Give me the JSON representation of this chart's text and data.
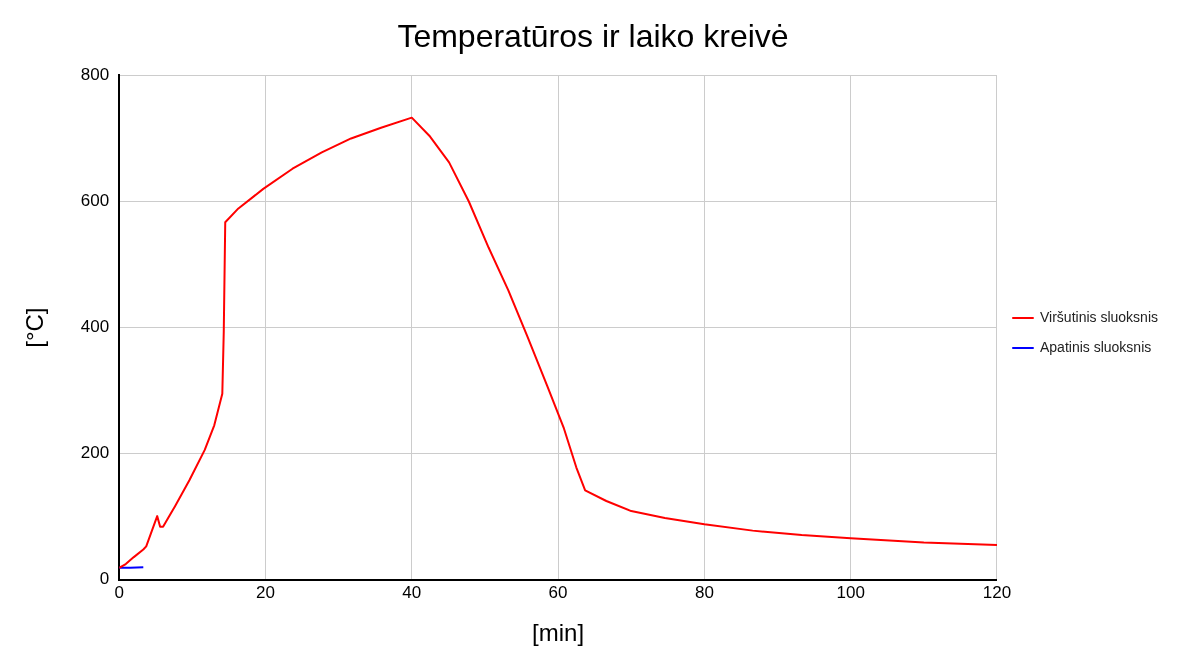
{
  "chart_data": {
    "type": "line",
    "title": "Temperatūros ir laiko kreivė",
    "xlabel": "[min]",
    "ylabel": "[°C]",
    "xlim": [
      0,
      120
    ],
    "xticks": [
      0,
      20,
      40,
      60,
      80,
      100,
      120
    ],
    "ylim": [
      0,
      800
    ],
    "yticks": [
      0,
      200,
      400,
      600,
      800
    ],
    "grid": true,
    "legend": "right",
    "marker": "none",
    "line_style": "solid",
    "series": [
      {
        "name": "Viršutinis sluoksnis",
        "color": "#ff0000",
        "x": [
          0,
          0.9,
          2,
          3.3,
          3.7,
          5.2,
          5.6,
          6,
          7.6,
          9.6,
          11.7,
          13,
          14.1,
          14.3,
          14.5,
          16.3,
          19.7,
          23.7,
          27.7,
          31.7,
          35.8,
          40,
          42.5,
          45.1,
          47.8,
          50.5,
          53.2,
          55.8,
          58.5,
          60.8,
          62.5,
          63.7,
          66.6,
          70,
          74.6,
          80,
          86.6,
          93.3,
          100,
          110,
          120
        ],
        "values": [
          19,
          25,
          36,
          48,
          53,
          101,
          84,
          84,
          116,
          158,
          206,
          245,
          295,
          394,
          567,
          589,
          620,
          652,
          678,
          700,
          717,
          733,
          703,
          662,
          600,
          527,
          459,
          386,
          308,
          240,
          178,
          142,
          125,
          109,
          98,
          88,
          78,
          71,
          66,
          59,
          55
        ]
      },
      {
        "name": "Apatinis sluoksnis",
        "color": "#0000ff",
        "x": [
          0,
          1.5,
          3.3
        ],
        "values": [
          19,
          19,
          20
        ]
      }
    ]
  }
}
